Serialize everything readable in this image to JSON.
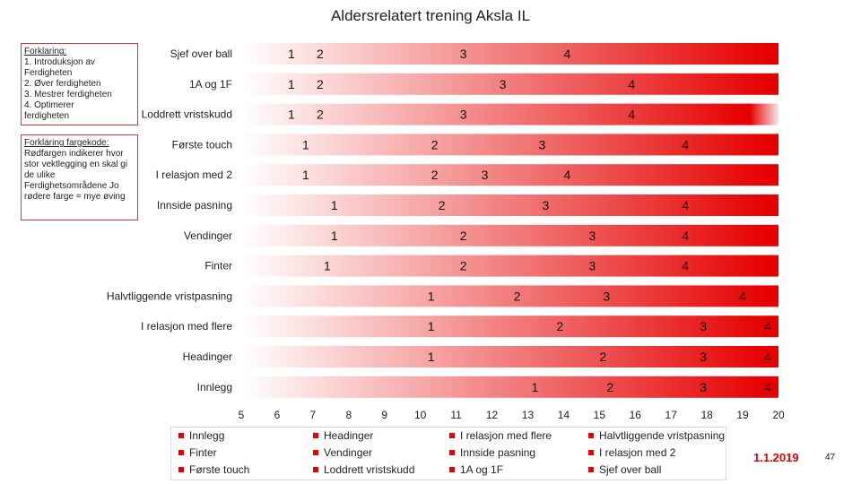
{
  "chart_data": {
    "type": "bar",
    "orientation": "horizontal",
    "stacked": true,
    "title": "Aldersrelatert trening Aksla IL",
    "xlim": [
      5,
      20
    ],
    "xticks": [
      5,
      6,
      7,
      8,
      9,
      10,
      11,
      12,
      13,
      14,
      15,
      16,
      17,
      18,
      19,
      20
    ],
    "grid": false,
    "legend_position": "bottom",
    "stage_labels": [
      "1",
      "2",
      "3",
      "4"
    ],
    "categories": [
      "Sjef over ball",
      "1A og 1F",
      "Loddrett vristskudd",
      "Første touch",
      "I relasjon med 2",
      "Innside pasning",
      "Vendinger",
      "Finter",
      "Halvtliggende vristpasning",
      "I relasjon med flere",
      "Headinger",
      "Innlegg"
    ],
    "bars": [
      {
        "start": 5,
        "end": 20,
        "peak": 20,
        "stages": [
          6.4,
          7.2,
          11.2,
          14.1
        ]
      },
      {
        "start": 5,
        "end": 20,
        "peak": 20,
        "stages": [
          6.4,
          7.2,
          12.3,
          15.9
        ]
      },
      {
        "start": 5,
        "end": 20,
        "peak": 19.5,
        "stages": [
          6.4,
          7.2,
          11.2,
          15.9
        ]
      },
      {
        "start": 5,
        "end": 20,
        "peak": 20,
        "stages": [
          6.8,
          10.4,
          13.4,
          17.4
        ]
      },
      {
        "start": 5,
        "end": 20,
        "peak": 20,
        "stages": [
          6.8,
          10.4,
          11.8,
          14.1
        ]
      },
      {
        "start": 5,
        "end": 20,
        "peak": 20,
        "stages": [
          7.6,
          10.6,
          13.5,
          17.4
        ]
      },
      {
        "start": 5,
        "end": 20,
        "peak": 20,
        "stages": [
          7.6,
          11.2,
          14.8,
          17.4
        ]
      },
      {
        "start": 5,
        "end": 20,
        "peak": 20,
        "stages": [
          7.4,
          11.2,
          14.8,
          17.4
        ]
      },
      {
        "start": 5,
        "end": 20,
        "peak": 20,
        "stages": [
          10.3,
          12.7,
          15.2,
          19.0
        ]
      },
      {
        "start": 5,
        "end": 20,
        "peak": 20,
        "stages": [
          10.3,
          13.9,
          17.9,
          19.7
        ]
      },
      {
        "start": 5,
        "end": 20,
        "peak": 20,
        "stages": [
          10.3,
          15.1,
          17.9,
          19.7
        ]
      },
      {
        "start": 5,
        "end": 20,
        "peak": 20,
        "stages": [
          13.2,
          15.3,
          17.9,
          19.7
        ]
      }
    ],
    "legend": [
      "Innlegg",
      "Headinger",
      "I relasjon med flere",
      "Halvtliggende vristpasning",
      "Finter",
      "Vendinger",
      "Innside pasning",
      "I relasjon med 2",
      "Første touch",
      "Loddrett vristskudd",
      "1A og 1F",
      "Sjef over ball"
    ],
    "colors": {
      "bar_strong": "#e60000",
      "bar_faded": "#ffffff",
      "frame": "#e03030"
    }
  },
  "notes": {
    "explanation_heading": "Forklaring:",
    "explanation_lines": [
      "1. Introduksjon av",
      "Ferdigheten",
      "2. Øver ferdigheten",
      "3. Mestrer ferdigheten",
      "4. Optimerer",
      "ferdigheten"
    ],
    "color_heading": "Forklaring fargekode:",
    "color_text": "Rødfargen indikerer hvor stor vektlegging en skal gi de ulike Ferdighetsområdene Jo rødere farge = mye øving"
  },
  "footer": {
    "date": "1.1.2019",
    "page_number": "47"
  }
}
